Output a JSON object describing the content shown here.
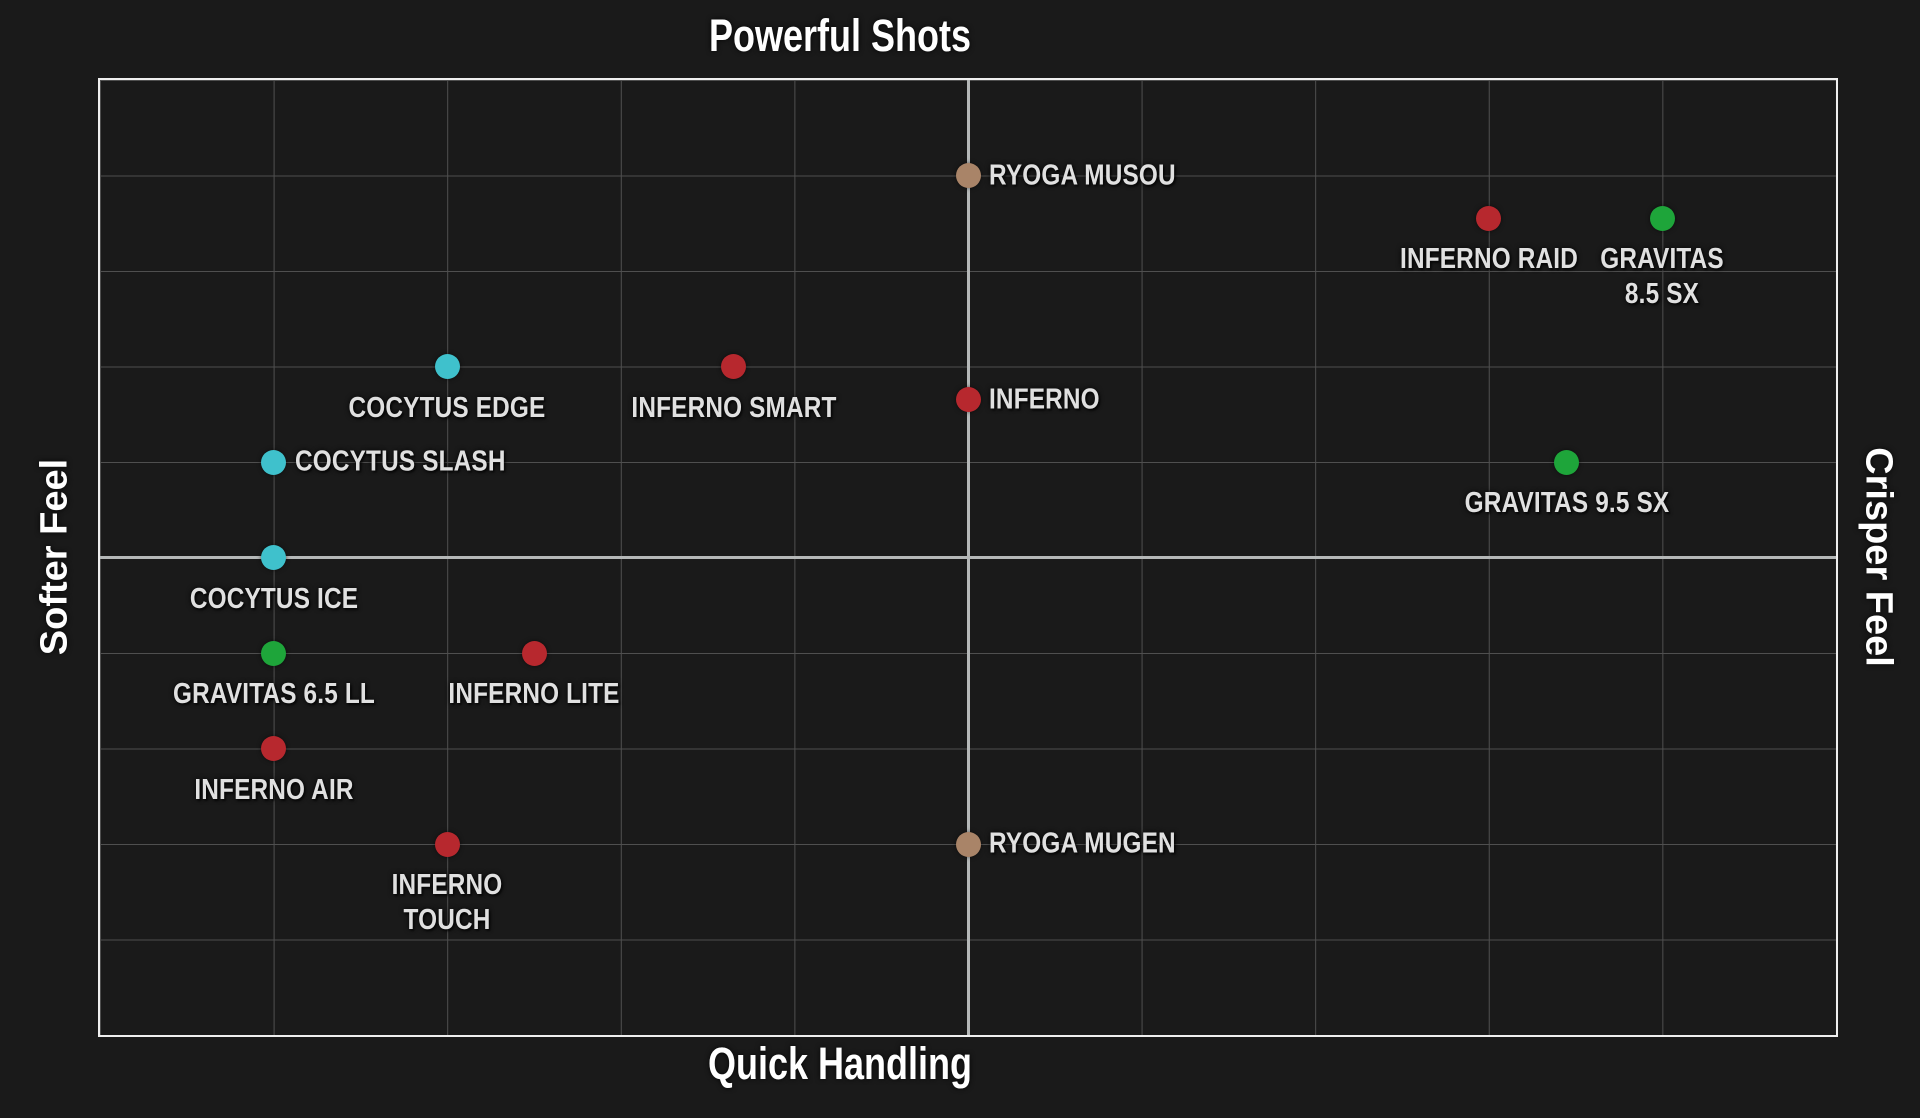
{
  "page": {
    "background": "#1a1a1a"
  },
  "chart_data": {
    "type": "scatter",
    "quadrant_labels": {
      "top": "Powerful Shots",
      "bottom": "Quick Handling",
      "left": "Softer Feel",
      "right": "Crisper Feel"
    },
    "x_axis": {
      "label_min": "Softer Feel",
      "label_max": "Crisper Feel",
      "range": [
        0,
        10
      ],
      "gridline_divisions": 10,
      "tick_labels": "none"
    },
    "y_axis": {
      "label_min": "Quick Handling",
      "label_max": "Powerful Shots",
      "range": [
        0,
        10
      ],
      "gridline_divisions": 10,
      "tick_labels": "none"
    },
    "grid": {
      "show": true,
      "columns": 10,
      "rows": 10,
      "center_lines_highlighted": true
    },
    "legend": "none",
    "colors": {
      "background": "#1a1a1a",
      "plot_border": "#efefef",
      "gridline": "#4f4f4f",
      "center_line": "#b5b8b8",
      "point_label_text": "#e0e0e0",
      "title_text": "#ffffff"
    },
    "series": [
      {
        "name": "INFERNO",
        "color": "#b7282e"
      },
      {
        "name": "COCYTUS",
        "color": "#3fc1cc"
      },
      {
        "name": "GRAVITAS",
        "color": "#1ea53a"
      },
      {
        "name": "RYOGA",
        "color": "#a98468"
      }
    ],
    "points": [
      {
        "name": "RYOGA MUSOU",
        "series": "RYOGA",
        "x": 5.0,
        "y": 9.0,
        "label_position": "right",
        "label_lines": [
          "RYOGA MUSOU"
        ]
      },
      {
        "name": "INFERNO RAID",
        "series": "INFERNO",
        "x": 8.0,
        "y": 8.55,
        "label_position": "below",
        "label_lines": [
          "INFERNO RAID"
        ]
      },
      {
        "name": "GRAVITAS 8.5 SX",
        "series": "GRAVITAS",
        "x": 9.0,
        "y": 8.55,
        "label_position": "below",
        "label_lines": [
          "GRAVITAS",
          "8.5 SX"
        ]
      },
      {
        "name": "COCYTUS EDGE",
        "series": "COCYTUS",
        "x": 2.0,
        "y": 7.0,
        "label_position": "below",
        "label_lines": [
          "COCYTUS EDGE"
        ]
      },
      {
        "name": "INFERNO SMART",
        "series": "INFERNO",
        "x": 3.65,
        "y": 7.0,
        "label_position": "below",
        "label_lines": [
          "INFERNO SMART"
        ]
      },
      {
        "name": "INFERNO",
        "series": "INFERNO",
        "x": 5.0,
        "y": 6.65,
        "label_position": "right",
        "label_lines": [
          "INFERNO"
        ]
      },
      {
        "name": "COCYTUS SLASH",
        "series": "COCYTUS",
        "x": 1.0,
        "y": 6.0,
        "label_position": "right",
        "label_lines": [
          "COCYTUS SLASH"
        ]
      },
      {
        "name": "GRAVITAS 9.5 SX",
        "series": "GRAVITAS",
        "x": 8.45,
        "y": 6.0,
        "label_position": "below",
        "label_lines": [
          "GRAVITAS 9.5 SX"
        ]
      },
      {
        "name": "COCYTUS ICE",
        "series": "COCYTUS",
        "x": 1.0,
        "y": 5.0,
        "label_position": "below",
        "label_lines": [
          "COCYTUS ICE"
        ]
      },
      {
        "name": "GRAVITAS 6.5 LL",
        "series": "GRAVITAS",
        "x": 1.0,
        "y": 4.0,
        "label_position": "below",
        "label_lines": [
          "GRAVITAS 6.5 LL"
        ]
      },
      {
        "name": "INFERNO LITE",
        "series": "INFERNO",
        "x": 2.5,
        "y": 4.0,
        "label_position": "below",
        "label_lines": [
          "INFERNO LITE"
        ]
      },
      {
        "name": "INFERNO AIR",
        "series": "INFERNO",
        "x": 1.0,
        "y": 3.0,
        "label_position": "below",
        "label_lines": [
          "INFERNO AIR"
        ]
      },
      {
        "name": "INFERNO TOUCH",
        "series": "INFERNO",
        "x": 2.0,
        "y": 2.0,
        "label_position": "below",
        "label_lines": [
          "INFERNO",
          "TOUCH"
        ]
      },
      {
        "name": "RYOGA MUGEN",
        "series": "RYOGA",
        "x": 5.0,
        "y": 2.0,
        "label_position": "right",
        "label_lines": [
          "RYOGA MUGEN"
        ]
      }
    ]
  }
}
